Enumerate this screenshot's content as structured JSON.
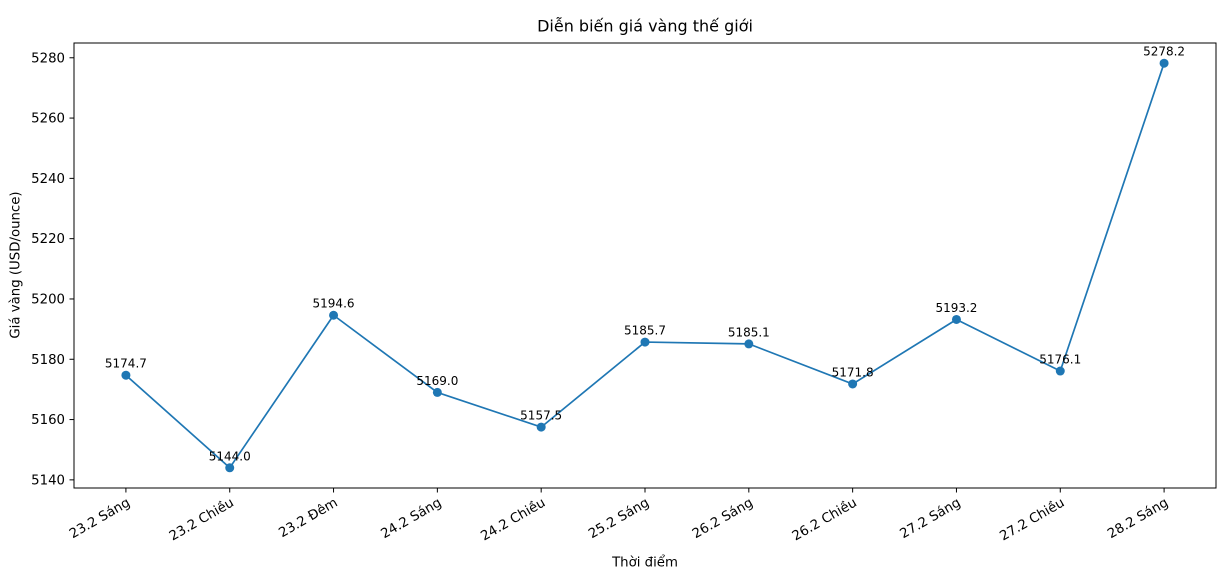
{
  "chart_data": {
    "type": "line",
    "title": "Diễn biến giá vàng thế giới",
    "xlabel": "Thời điểm",
    "ylabel": "Giá vàng (USD/ounce)",
    "categories": [
      "23.2 Sáng",
      "23.2 Chiều",
      "23.2 Đêm",
      "24.2 Sáng",
      "24.2 Chiều",
      "25.2 Sáng",
      "26.2 Sáng",
      "26.2 Chiều",
      "27.2 Sáng",
      "27.2 Chiều",
      "28.2 Sáng"
    ],
    "values": [
      5174.7,
      5144.0,
      5194.6,
      5169.0,
      5157.5,
      5185.7,
      5185.1,
      5171.8,
      5193.2,
      5176.1,
      5278.2
    ],
    "point_labels": [
      "5174.7",
      "5144.0",
      "5194.6",
      "5169.0",
      "5157.5",
      "5185.7",
      "5185.1",
      "5171.8",
      "5193.2",
      "5176.1",
      "5278.2"
    ],
    "yticks": [
      5140,
      5160,
      5180,
      5200,
      5220,
      5240,
      5260,
      5280
    ],
    "ylim": [
      5137.3,
      5284.9
    ],
    "line_color": "#1f77b4",
    "marker": "circle",
    "grid": false,
    "legend": "none",
    "x_tick_rotation_deg": 30,
    "axis_color": "#000000",
    "text_color": "#000000"
  }
}
